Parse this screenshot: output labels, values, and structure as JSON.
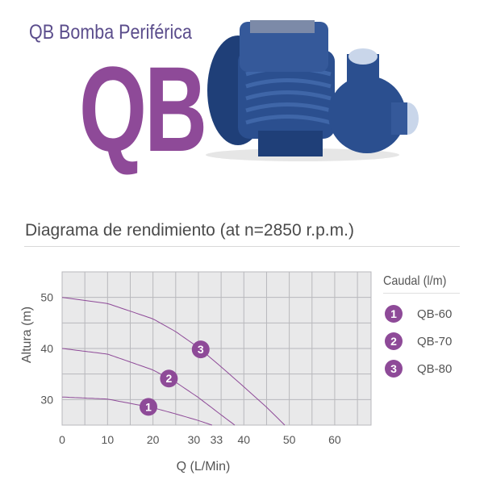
{
  "header": {
    "subtitle": "QB Bomba Periférica",
    "logo_text": "QB",
    "title": "Diagrama de rendimiento (at n=2850 r.p.m.)"
  },
  "colors": {
    "accent": "#8e4a98",
    "grid_bg": "#e9e9ea",
    "grid_line": "#b8b8bc",
    "pump": "#2b4f8f"
  },
  "chart_data": {
    "type": "line",
    "xlabel": "Q (L/Min)",
    "ylabel": "Altura (m)",
    "xlim": [
      0,
      68
    ],
    "ylim": [
      25,
      55
    ],
    "grid": true,
    "legend_position": "right",
    "legend_title": "Caudal (l/m)",
    "x_ticks": [
      {
        "value": 0,
        "label": "0"
      },
      {
        "value": 10,
        "label": "10"
      },
      {
        "value": 20,
        "label": "20"
      },
      {
        "value": 30,
        "label": "30"
      },
      {
        "value": 33,
        "label": "33"
      },
      {
        "value": 40,
        "label": "40"
      },
      {
        "value": 50,
        "label": "50"
      },
      {
        "value": 60,
        "label": "60"
      }
    ],
    "y_ticks": [
      {
        "value": 30,
        "label": "30"
      },
      {
        "value": 40,
        "label": "40"
      },
      {
        "value": 50,
        "label": "50"
      }
    ],
    "series": [
      {
        "name": "QB-60",
        "marker": "1",
        "points": [
          [
            0,
            30.5
          ],
          [
            10,
            30.1
          ],
          [
            20,
            28.4
          ],
          [
            25,
            27.2
          ],
          [
            30,
            25.9
          ],
          [
            33,
            25
          ]
        ],
        "marker_at": 19
      },
      {
        "name": "QB-70",
        "marker": "2",
        "points": [
          [
            0,
            40
          ],
          [
            10,
            38.9
          ],
          [
            20,
            35.8
          ],
          [
            25,
            33.4
          ],
          [
            30,
            30.4
          ],
          [
            35,
            27
          ],
          [
            38,
            25
          ]
        ],
        "marker_at": 23.5
      },
      {
        "name": "QB-80",
        "marker": "3",
        "points": [
          [
            0,
            50
          ],
          [
            10,
            48.8
          ],
          [
            20,
            45.8
          ],
          [
            25,
            43.3
          ],
          [
            30,
            40.2
          ],
          [
            35,
            36.4
          ],
          [
            40,
            32.5
          ],
          [
            45,
            28.5
          ],
          [
            49,
            25
          ]
        ],
        "marker_at": 30.5
      }
    ]
  }
}
